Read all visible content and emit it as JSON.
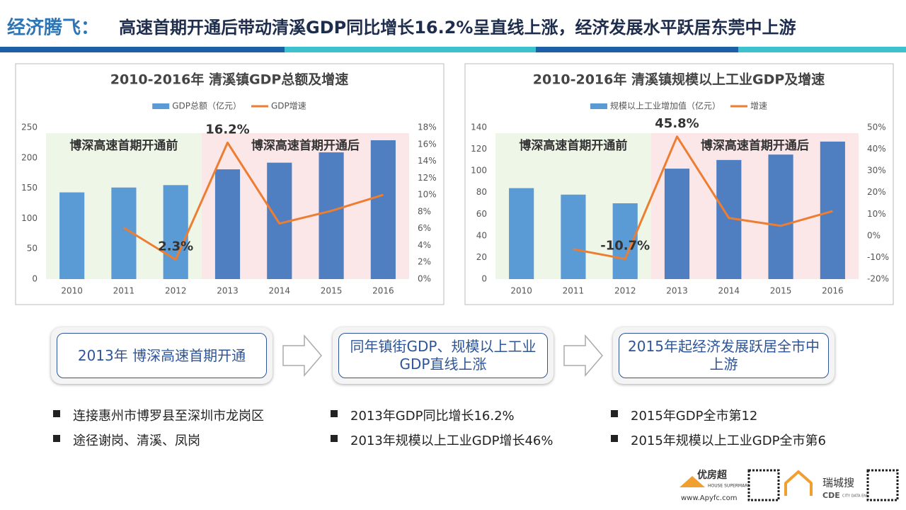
{
  "header": {
    "title_lead": "经济腾飞：",
    "title_text": "高速首期开通后带动清溪GDP同比增长16.2%呈直线上涨，经济发展水平跃居东莞中上游"
  },
  "chart_data": [
    {
      "type": "combo",
      "title": "2010-2016年  清溪镇GDP总额及增速",
      "categories": [
        "2010",
        "2011",
        "2012",
        "2013",
        "2014",
        "2015",
        "2016"
      ],
      "series": [
        {
          "name": "GDP总额（亿元）",
          "type": "bar",
          "colors": [
            "#5b9bd5",
            "#5b9bd5",
            "#5b9bd5",
            "#4f7fc0",
            "#4f7fc0",
            "#4f7fc0",
            "#4f7fc0"
          ],
          "values": [
            143,
            151,
            155,
            181,
            192,
            209,
            229
          ]
        },
        {
          "name": "GDP增速",
          "type": "line",
          "axis": "y2",
          "color": "#ed7d31",
          "values": [
            null,
            6.1,
            2.3,
            16.2,
            6.6,
            8.1,
            10
          ],
          "value_labels": [
            null,
            null,
            "2.3%",
            "16.2%",
            null,
            null,
            null
          ]
        }
      ],
      "ylim": [
        0,
        250
      ],
      "yticks": [
        0,
        50,
        100,
        150,
        200,
        250
      ],
      "y2lim": [
        0,
        18
      ],
      "y2ticks": [
        {
          "value": 0,
          "label": "0%"
        },
        {
          "value": 2,
          "label": "2%"
        },
        {
          "value": 4,
          "label": "4%"
        },
        {
          "value": 6,
          "label": "6%"
        },
        {
          "value": 8,
          "label": "8%"
        },
        {
          "value": 10,
          "label": "10%"
        },
        {
          "value": 12,
          "label": "12%"
        },
        {
          "value": 14,
          "label": "14%"
        },
        {
          "value": 16,
          "label": "16%"
        },
        {
          "value": 18,
          "label": "18%"
        }
      ],
      "regions": [
        {
          "label": "博深高速首期开通前",
          "from": "2010",
          "to": "2012",
          "color": "#eef6e8"
        },
        {
          "label": "博深高速首期开通后",
          "from": "2013",
          "to": "2016",
          "color": "#fbe6e8"
        }
      ]
    },
    {
      "type": "combo",
      "title": "2010-2016年  清溪镇规模以上工业GDP及增速",
      "categories": [
        "2010",
        "2011",
        "2012",
        "2013",
        "2014",
        "2015",
        "2016"
      ],
      "series": [
        {
          "name": "规模以上工业增加值（亿元）",
          "type": "bar",
          "colors": [
            "#5b9bd5",
            "#5b9bd5",
            "#5b9bd5",
            "#4f7fc0",
            "#4f7fc0",
            "#4f7fc0",
            "#4f7fc0"
          ],
          "values": [
            84,
            78,
            70,
            102,
            110,
            115,
            127
          ]
        },
        {
          "name": "增速",
          "type": "line",
          "axis": "y2",
          "color": "#ed7d31",
          "values": [
            null,
            -6.2,
            -10.7,
            45.8,
            8.2,
            4.6,
            11.4
          ],
          "value_labels": [
            null,
            null,
            "-10.7%",
            "45.8%",
            null,
            null,
            null
          ]
        }
      ],
      "ylim": [
        0,
        140
      ],
      "yticks": [
        0,
        20,
        40,
        60,
        80,
        100,
        120,
        140
      ],
      "y2lim": [
        -20,
        50
      ],
      "y2ticks": [
        {
          "value": -20,
          "label": "-20%"
        },
        {
          "value": -10,
          "label": "-10%"
        },
        {
          "value": 0,
          "label": "0%"
        },
        {
          "value": 10,
          "label": "10%"
        },
        {
          "value": 20,
          "label": "20%"
        },
        {
          "value": 30,
          "label": "30%"
        },
        {
          "value": 40,
          "label": "40%"
        },
        {
          "value": 50,
          "label": "50%"
        }
      ],
      "regions": [
        {
          "label": "博深高速首期开通前",
          "from": "2010",
          "to": "2012",
          "color": "#eef6e8"
        },
        {
          "label": "博深高速首期开通后",
          "from": "2013",
          "to": "2016",
          "color": "#fbe6e8"
        }
      ]
    }
  ],
  "flow": {
    "steps": [
      "2013年 博深高速首期开通",
      "同年镇街GDP、规模以上工业GDP直线上涨",
      "2015年起经济发展跃居全市中上游"
    ]
  },
  "bullets": [
    [
      "连接惠州市博罗县至深圳市龙岗区",
      "途径谢岗、清溪、凤岗"
    ],
    [
      "2013年GDP同比增长16.2%",
      "2013年规模以上工业GDP增长46%"
    ],
    [
      "2015年GDP全市第12",
      "2015年规模以上工业GDP全市第6"
    ]
  ],
  "footer": {
    "brand1": "优房超",
    "brand1_sub": "HOUSE SUPERMARKET",
    "url": "www.Apyfc.com",
    "brand2": "瑞城搜",
    "brand2_sub": "CDE",
    "brand2_tag": "CITY DATA ENGINE"
  }
}
